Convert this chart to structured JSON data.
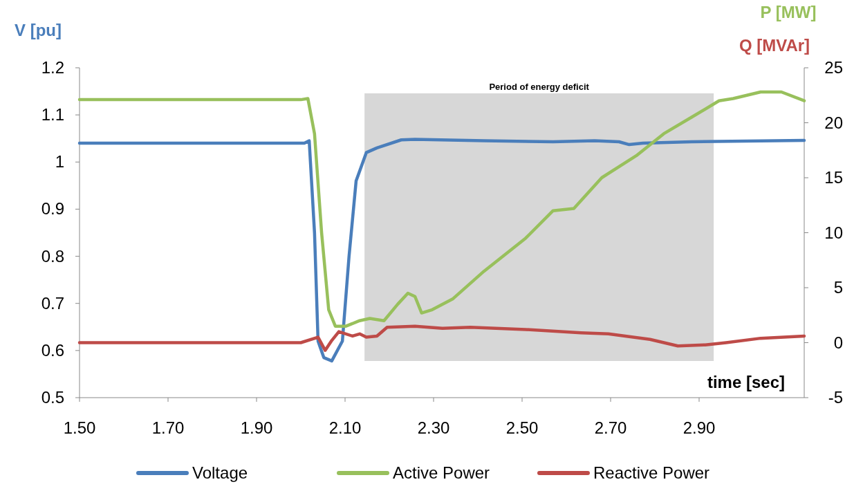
{
  "chart_data": {
    "type": "line",
    "xlabel": "time [sec]",
    "ylabel": "V [pu]",
    "y2label": "P [MW]",
    "annotations": [
      "Q [MVAr]"
    ],
    "xlim": [
      1.5,
      3.1375
    ],
    "xticks": [
      {
        "value": 1.5,
        "label": "1.50"
      },
      {
        "value": 1.7,
        "label": "1.70"
      },
      {
        "value": 1.9,
        "label": "1.90"
      },
      {
        "value": 2.1,
        "label": "2.10"
      },
      {
        "value": 2.3,
        "label": "2.30"
      },
      {
        "value": 2.5,
        "label": "2.50"
      },
      {
        "value": 2.7,
        "label": "2.70"
      },
      {
        "value": 2.9,
        "label": "2.90"
      }
    ],
    "ylim": [
      0.5,
      1.2
    ],
    "yticks": [
      0.5,
      0.6,
      0.7,
      0.8,
      0.9,
      1,
      1.1,
      1.2
    ],
    "y2lim": [
      -5,
      25
    ],
    "y2ticks": [
      -5,
      0,
      5,
      10,
      15,
      20,
      25
    ],
    "grid": false,
    "legend": "bottom",
    "marker": "none",
    "line_style": "solid",
    "bands": [
      {
        "axis": "x",
        "from": 2.144,
        "to": 2.933,
        "label": "Period of energy deficit",
        "color": "#d0d0d0"
      }
    ],
    "series": [
      {
        "name": "Voltage",
        "color": "#4a7ebb",
        "x": [
          1.5,
          2.008,
          2.019,
          2.031,
          2.039,
          2.052,
          2.07,
          2.094,
          2.109,
          2.125,
          2.148,
          2.172,
          2.227,
          2.258,
          2.414,
          2.57,
          2.664,
          2.719,
          2.742,
          2.773,
          2.883,
          3.1375
        ],
        "values": [
          1.04,
          1.04,
          1.045,
          0.85,
          0.62,
          0.585,
          0.578,
          0.62,
          0.8,
          0.96,
          1.02,
          1.03,
          1.047,
          1.048,
          1.045,
          1.043,
          1.045,
          1.043,
          1.037,
          1.04,
          1.043,
          1.046
        ]
      },
      {
        "name": "Active Power",
        "color": "#98c05c",
        "axis": "y2",
        "x": [
          1.5,
          2.0,
          2.016,
          2.031,
          2.047,
          2.063,
          2.078,
          2.102,
          2.133,
          2.156,
          2.188,
          2.219,
          2.242,
          2.258,
          2.273,
          2.297,
          2.344,
          2.414,
          2.508,
          2.57,
          2.617,
          2.68,
          2.758,
          2.82,
          2.883,
          2.945,
          2.977,
          3.039,
          3.086,
          3.1375
        ],
        "values": [
          22.1,
          22.1,
          22.2,
          19,
          10,
          3,
          1.5,
          1.5,
          2,
          2.2,
          2.0,
          3.5,
          4.5,
          4.2,
          2.7,
          3.0,
          4.0,
          6.5,
          9.5,
          12,
          12.2,
          15,
          17,
          19,
          20.5,
          22,
          22.2,
          22.8,
          22.8,
          22.0
        ]
      },
      {
        "name": "Reactive Power",
        "color": "#be4b48",
        "axis": "y2",
        "x": [
          1.5,
          2.0,
          2.039,
          2.055,
          2.07,
          2.086,
          2.117,
          2.133,
          2.148,
          2.172,
          2.195,
          2.258,
          2.32,
          2.383,
          2.508,
          2.633,
          2.695,
          2.789,
          2.852,
          2.914,
          2.961,
          3.039,
          3.1375
        ],
        "values": [
          0,
          0,
          0.5,
          -0.7,
          0.2,
          1.0,
          0.6,
          0.8,
          0.5,
          0.6,
          1.4,
          1.5,
          1.3,
          1.4,
          1.2,
          0.9,
          0.8,
          0.3,
          -0.3,
          -0.2,
          0,
          0.4,
          0.6
        ]
      }
    ]
  }
}
